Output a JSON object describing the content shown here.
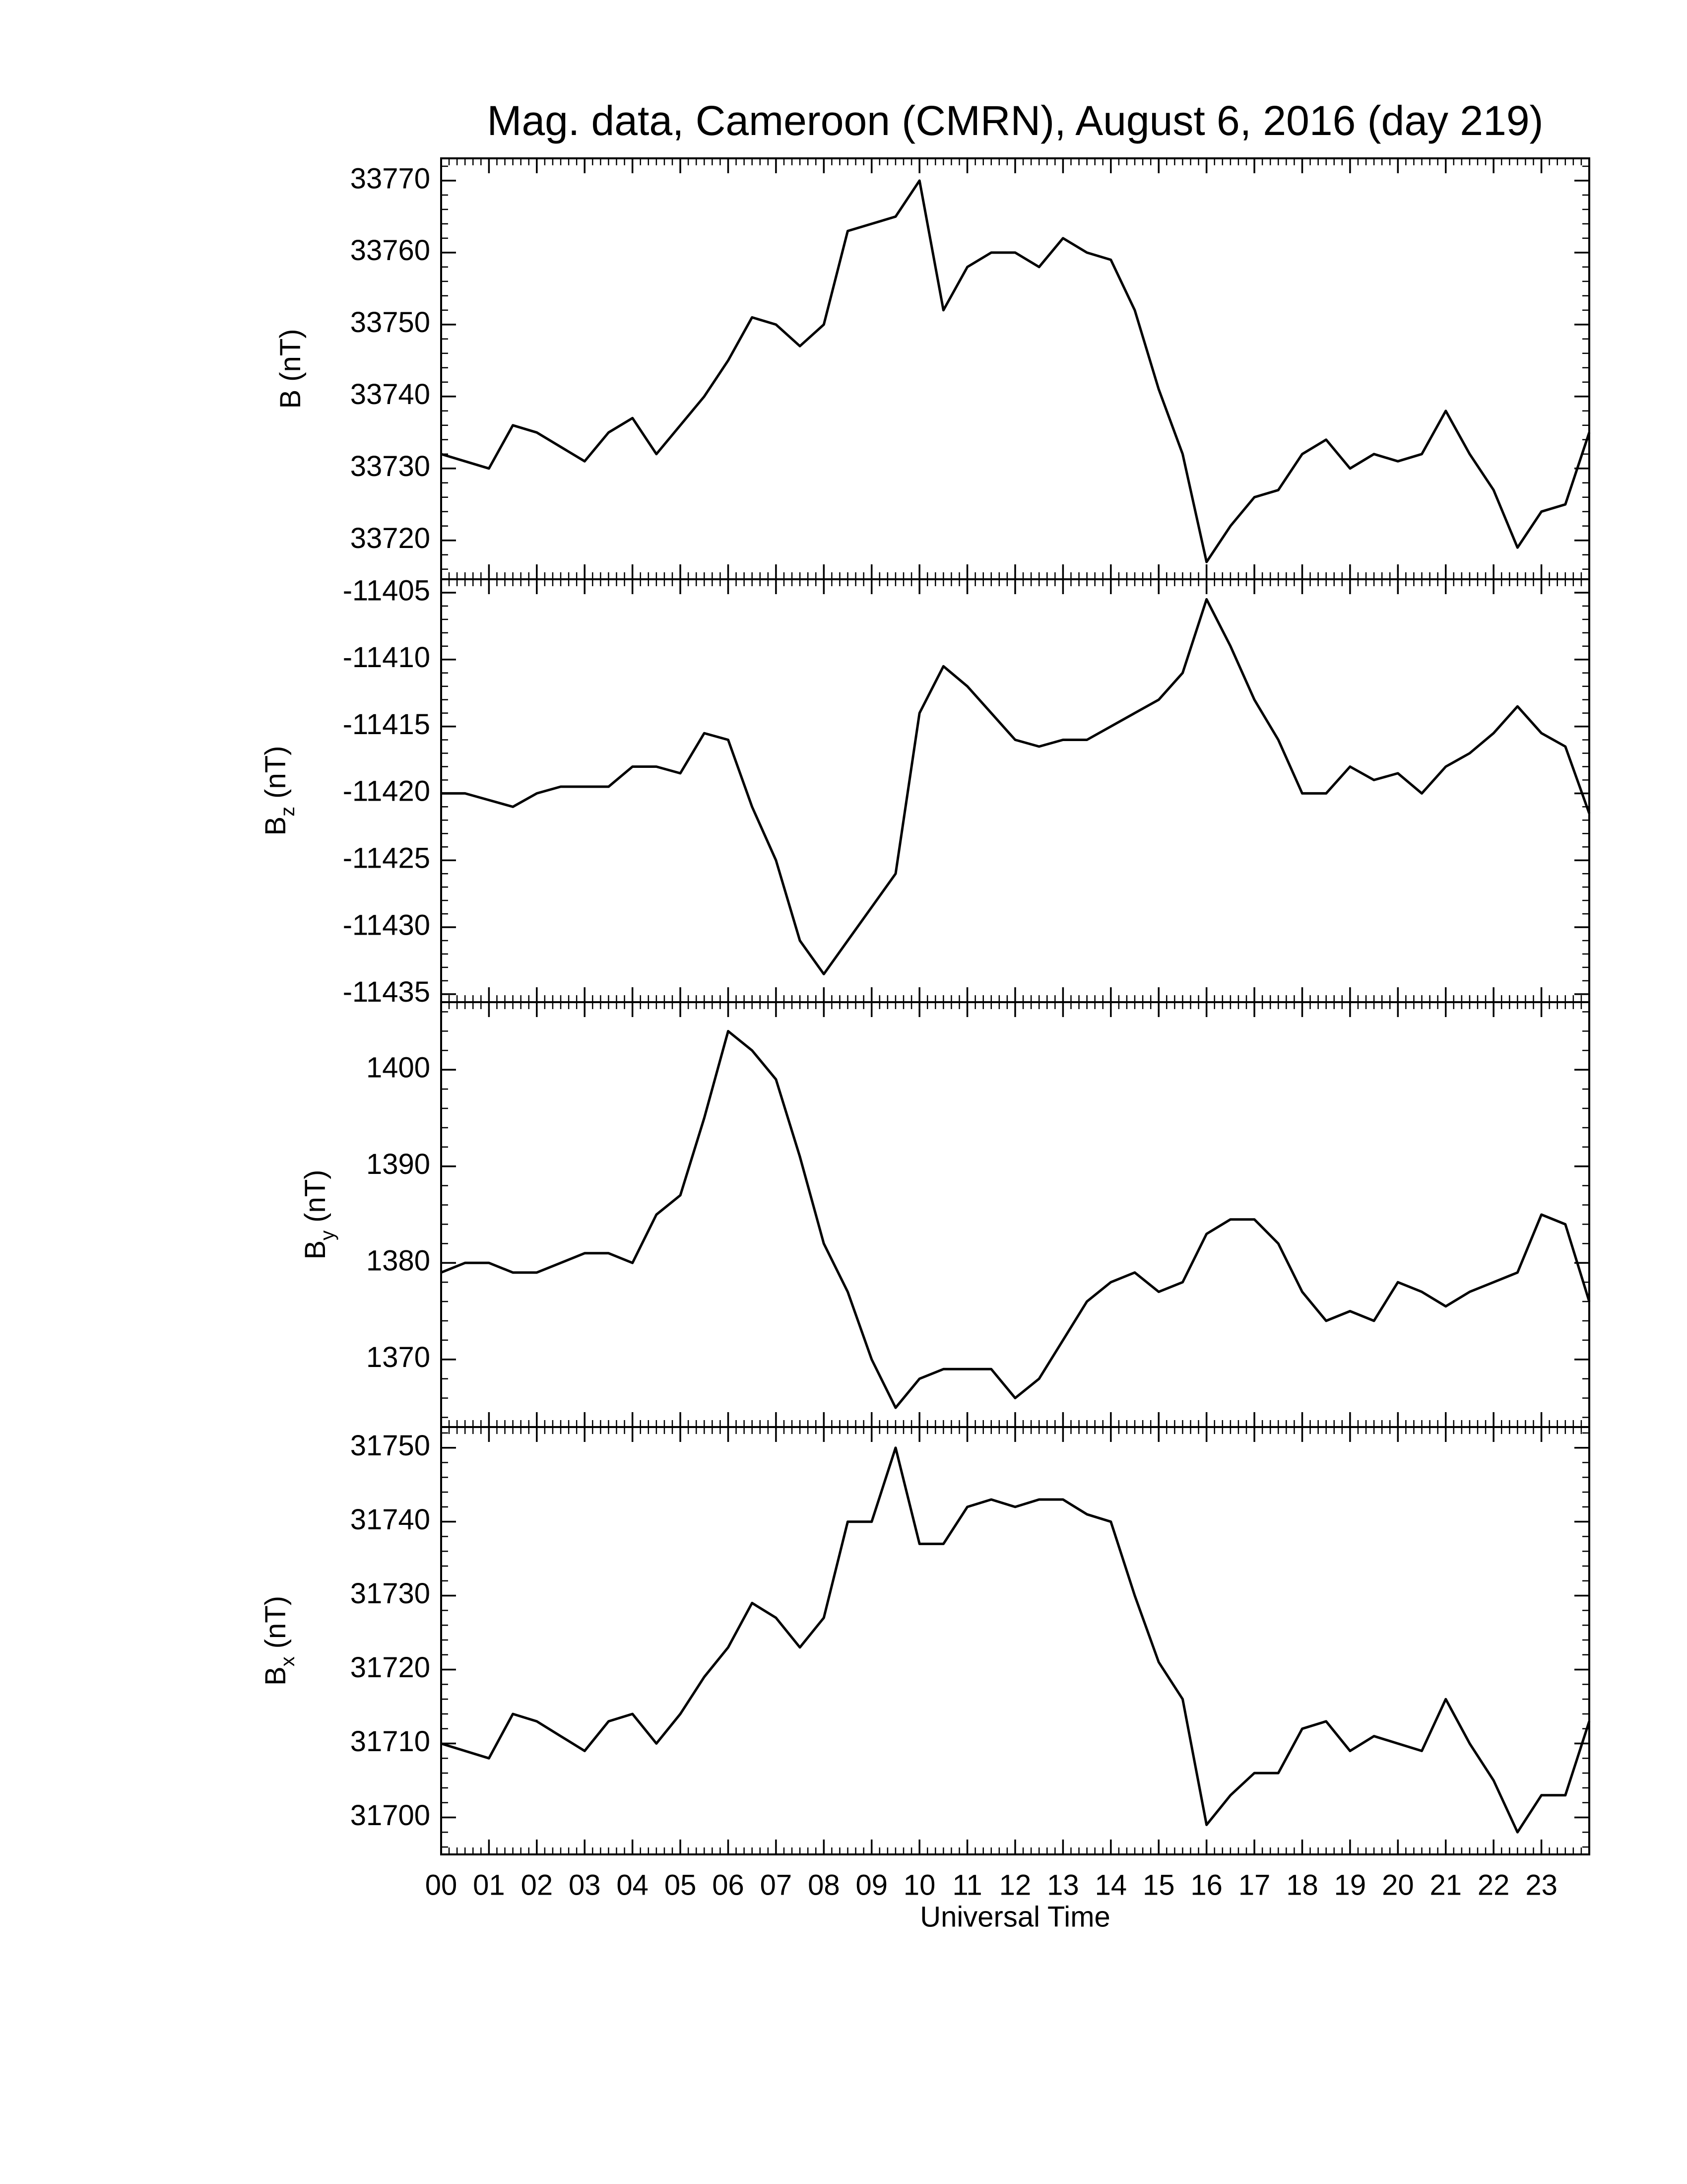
{
  "title": "Mag. data, Cameroon (CMRN), August 6, 2016 (day 219)",
  "chart_data": [
    {
      "type": "line",
      "ylabel": {
        "symbol": "B",
        "unit": "(nT)"
      },
      "x": [
        0,
        0.5,
        1,
        1.5,
        2,
        2.5,
        3,
        3.5,
        4,
        4.5,
        5,
        5.5,
        6,
        6.5,
        7,
        7.5,
        8,
        8.5,
        9,
        9.5,
        10,
        10.5,
        11,
        11.5,
        12,
        12.5,
        13,
        13.5,
        14,
        14.5,
        15,
        15.5,
        16,
        16.5,
        17,
        17.5,
        18,
        18.5,
        19,
        19.5,
        20,
        20.5,
        21,
        21.5,
        22,
        22.5,
        23,
        23.5,
        24
      ],
      "series": [
        {
          "color": "#000000",
          "values": [
            33732,
            33731,
            33730,
            33736,
            33735,
            33733,
            33731,
            33735,
            33737,
            33732,
            33736,
            33740,
            33745,
            33751,
            33750,
            33747,
            33750,
            33763,
            33764,
            33765,
            33770,
            33752,
            33758,
            33760,
            33760,
            33758,
            33762,
            33760,
            33759,
            33752,
            33741,
            33732,
            33717,
            33722,
            33726,
            33727,
            33732,
            33734,
            33730,
            33732,
            33731,
            33732,
            33738,
            33732,
            33727,
            33719,
            33724,
            33725,
            33735
          ]
        }
      ],
      "xlim": [
        0,
        24
      ],
      "xticks": [
        0,
        1,
        2,
        3,
        4,
        5,
        6,
        7,
        8,
        9,
        10,
        11,
        12,
        13,
        14,
        15,
        16,
        17,
        18,
        19,
        20,
        21,
        22,
        23
      ],
      "ylim": [
        33714.6,
        33773.1
      ],
      "yticks": [
        33720,
        33730,
        33740,
        33750,
        33760,
        33770
      ]
    },
    {
      "type": "line",
      "ylabel": {
        "symbol": "B",
        "subscript": "z",
        "unit": "(nT)"
      },
      "x": [
        0,
        0.5,
        1,
        1.5,
        2,
        2.5,
        3,
        3.5,
        4,
        4.5,
        5,
        5.5,
        6,
        6.5,
        7,
        7.5,
        8,
        8.5,
        9,
        9.5,
        10,
        10.5,
        11,
        11.5,
        12,
        12.5,
        13,
        13.5,
        14,
        14.5,
        15,
        15.5,
        16,
        16.5,
        17,
        17.5,
        18,
        18.5,
        19,
        19.5,
        20,
        20.5,
        21,
        21.5,
        22,
        22.5,
        23,
        23.5,
        24
      ],
      "series": [
        {
          "color": "#000000",
          "values": [
            -11420,
            -11420,
            -11420.5,
            -11421,
            -11420,
            -11419.5,
            -11419.5,
            -11419.5,
            -11418,
            -11418,
            -11418.5,
            -11415.5,
            -11416,
            -11421,
            -11425,
            -11431,
            -11433.5,
            -11431,
            -11428.5,
            -11426,
            -11414,
            -11410.5,
            -11412,
            -11414,
            -11416,
            -11416.5,
            -11416,
            -11416,
            -11415,
            -11414,
            -11413,
            -11411,
            -11405.5,
            -11409,
            -11413,
            -11416,
            -11420,
            -11420,
            -11418,
            -11419,
            -11418.5,
            -11420,
            -11418,
            -11417,
            -11415.5,
            -11413.5,
            -11415.5,
            -11416.5,
            -11421.5
          ]
        }
      ],
      "xlim": [
        0,
        24
      ],
      "xticks": [
        0,
        1,
        2,
        3,
        4,
        5,
        6,
        7,
        8,
        9,
        10,
        11,
        12,
        13,
        14,
        15,
        16,
        17,
        18,
        19,
        20,
        21,
        22,
        23
      ],
      "ylim": [
        -11435.6,
        -11404
      ],
      "yticks": [
        -11435,
        -11430,
        -11425,
        -11420,
        -11415,
        -11410,
        -11405
      ]
    },
    {
      "type": "line",
      "ylabel": {
        "symbol": "B",
        "subscript": "y",
        "unit": "(nT)"
      },
      "x": [
        0,
        0.5,
        1,
        1.5,
        2,
        2.5,
        3,
        3.5,
        4,
        4.5,
        5,
        5.5,
        6,
        6.5,
        7,
        7.5,
        8,
        8.5,
        9,
        9.5,
        10,
        10.5,
        11,
        11.5,
        12,
        12.5,
        13,
        13.5,
        14,
        14.5,
        15,
        15.5,
        16,
        16.5,
        17,
        17.5,
        18,
        18.5,
        19,
        19.5,
        20,
        20.5,
        21,
        21.5,
        22,
        22.5,
        23,
        23.5,
        24
      ],
      "series": [
        {
          "color": "#000000",
          "values": [
            1379,
            1380,
            1380,
            1379,
            1379,
            1380,
            1381,
            1381,
            1380,
            1385,
            1387,
            1395,
            1404,
            1402,
            1399,
            1391,
            1382,
            1377,
            1370,
            1365,
            1368,
            1369,
            1369,
            1369,
            1366,
            1368,
            1372,
            1376,
            1378,
            1379,
            1377,
            1378,
            1383,
            1384.5,
            1384.5,
            1382,
            1377,
            1374,
            1375,
            1374,
            1378,
            1377,
            1375.5,
            1377,
            1378,
            1379,
            1385,
            1384,
            1376
          ]
        }
      ],
      "xlim": [
        0,
        24
      ],
      "xticks": [
        0,
        1,
        2,
        3,
        4,
        5,
        6,
        7,
        8,
        9,
        10,
        11,
        12,
        13,
        14,
        15,
        16,
        17,
        18,
        19,
        20,
        21,
        22,
        23
      ],
      "ylim": [
        1363,
        1407
      ],
      "yticks": [
        1370,
        1380,
        1390,
        1400
      ]
    },
    {
      "type": "line",
      "ylabel": {
        "symbol": "B",
        "subscript": "x",
        "unit": "(nT)"
      },
      "xlabel": "Universal Time",
      "x": [
        0,
        0.5,
        1,
        1.5,
        2,
        2.5,
        3,
        3.5,
        4,
        4.5,
        5,
        5.5,
        6,
        6.5,
        7,
        7.5,
        8,
        8.5,
        9,
        9.5,
        10,
        10.5,
        11,
        11.5,
        12,
        12.5,
        13,
        13.5,
        14,
        14.5,
        15,
        15.5,
        16,
        16.5,
        17,
        17.5,
        18,
        18.5,
        19,
        19.5,
        20,
        20.5,
        21,
        21.5,
        22,
        22.5,
        23,
        23.5,
        24
      ],
      "series": [
        {
          "color": "#000000",
          "values": [
            31710,
            31709,
            31708,
            31714,
            31713,
            31711,
            31709,
            31713,
            31714,
            31710,
            31714,
            31719,
            31723,
            31729,
            31727,
            31723,
            31727,
            31740,
            31740,
            31750,
            31737,
            31737,
            31742,
            31743,
            31742,
            31743,
            31743,
            31741,
            31740,
            31730,
            31721,
            31716,
            31699,
            31703,
            31706,
            31706,
            31712,
            31713,
            31709,
            31711,
            31710,
            31709,
            31716,
            31710,
            31705,
            31698,
            31703,
            31703,
            31713
          ]
        }
      ],
      "xlim": [
        0,
        24
      ],
      "xticks": [
        {
          "value": 0,
          "label": "00"
        },
        {
          "value": 1,
          "label": "01"
        },
        {
          "value": 2,
          "label": "02"
        },
        {
          "value": 3,
          "label": "03"
        },
        {
          "value": 4,
          "label": "04"
        },
        {
          "value": 5,
          "label": "05"
        },
        {
          "value": 6,
          "label": "06"
        },
        {
          "value": 7,
          "label": "07"
        },
        {
          "value": 8,
          "label": "08"
        },
        {
          "value": 9,
          "label": "09"
        },
        10,
        11,
        12,
        13,
        14,
        15,
        16,
        17,
        18,
        19,
        20,
        21,
        22,
        23
      ],
      "ylim": [
        31695,
        31752.8
      ],
      "yticks": [
        31700,
        31710,
        31720,
        31730,
        31740,
        31750
      ]
    }
  ]
}
